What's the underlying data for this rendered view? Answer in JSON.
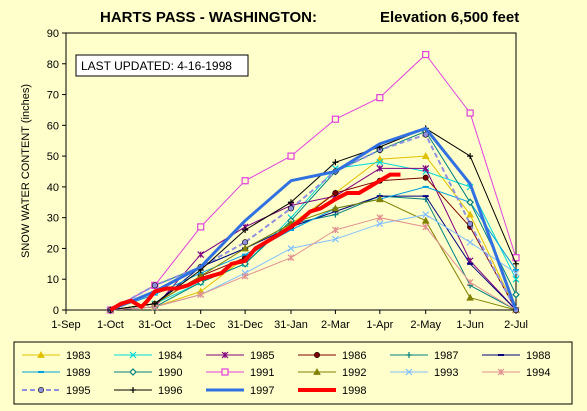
{
  "chart_data": {
    "type": "line",
    "title_left": "HARTS PASS - WASHINGTON:",
    "title_right": "Elevation 6,500 feet",
    "annotation": "LAST UPDATED: 4-16-1998",
    "ylabel": "SNOW WATER CONTENT (inches)",
    "ylim": [
      0,
      90
    ],
    "yticks": [
      0,
      10,
      20,
      30,
      40,
      50,
      60,
      70,
      80,
      90
    ],
    "xlim": [
      0,
      304
    ],
    "xticks": [
      {
        "label": "1-Sep",
        "day": 0
      },
      {
        "label": "1-Oct",
        "day": 30
      },
      {
        "label": "31-Oct",
        "day": 60
      },
      {
        "label": "1-Dec",
        "day": 91
      },
      {
        "label": "31-Dec",
        "day": 121
      },
      {
        "label": "31-Jan",
        "day": 152
      },
      {
        "label": "2-Mar",
        "day": 182
      },
      {
        "label": "1-Apr",
        "day": 212
      },
      {
        "label": "2-May",
        "day": 243
      },
      {
        "label": "1-Jun",
        "day": 273
      },
      {
        "label": "2-Jul",
        "day": 304
      }
    ],
    "grid": false,
    "legend_position": "bottom",
    "series": [
      {
        "name": "1983",
        "color": "#e0c000",
        "marker": "triangle",
        "width": 1,
        "points": [
          [
            30,
            0
          ],
          [
            60,
            1
          ],
          [
            91,
            6
          ],
          [
            121,
            17
          ],
          [
            152,
            28
          ],
          [
            182,
            38
          ],
          [
            212,
            49
          ],
          [
            243,
            50
          ],
          [
            273,
            31
          ],
          [
            304,
            0
          ]
        ]
      },
      {
        "name": "1984",
        "color": "#00d8d8",
        "marker": "x",
        "width": 1,
        "points": [
          [
            30,
            0
          ],
          [
            60,
            2
          ],
          [
            91,
            9
          ],
          [
            121,
            15
          ],
          [
            152,
            30
          ],
          [
            182,
            46
          ],
          [
            212,
            48
          ],
          [
            243,
            45
          ],
          [
            273,
            40
          ],
          [
            304,
            10
          ]
        ]
      },
      {
        "name": "1985",
        "color": "#800080",
        "marker": "star",
        "width": 1,
        "points": [
          [
            30,
            0
          ],
          [
            60,
            1
          ],
          [
            91,
            18
          ],
          [
            121,
            27
          ],
          [
            152,
            34
          ],
          [
            182,
            37
          ],
          [
            212,
            46
          ],
          [
            243,
            46
          ],
          [
            273,
            16
          ],
          [
            304,
            0
          ]
        ]
      },
      {
        "name": "1986",
        "color": "#800000",
        "marker": "circle",
        "width": 1,
        "points": [
          [
            30,
            0
          ],
          [
            60,
            2
          ],
          [
            91,
            11
          ],
          [
            121,
            17
          ],
          [
            152,
            27
          ],
          [
            182,
            38
          ],
          [
            212,
            42
          ],
          [
            243,
            43
          ],
          [
            273,
            27
          ],
          [
            304,
            0
          ]
        ]
      },
      {
        "name": "1987",
        "color": "#008080",
        "marker": "plus",
        "width": 1,
        "points": [
          [
            30,
            0
          ],
          [
            60,
            8
          ],
          [
            91,
            14
          ],
          [
            121,
            20
          ],
          [
            152,
            28
          ],
          [
            182,
            31
          ],
          [
            212,
            37
          ],
          [
            243,
            36
          ],
          [
            273,
            8
          ],
          [
            304,
            0
          ]
        ]
      },
      {
        "name": "1988",
        "color": "#000080",
        "marker": "dash",
        "width": 1,
        "points": [
          [
            30,
            0
          ],
          [
            60,
            2
          ],
          [
            91,
            14
          ],
          [
            121,
            20
          ],
          [
            152,
            27
          ],
          [
            182,
            32
          ],
          [
            212,
            37
          ],
          [
            243,
            37
          ],
          [
            273,
            15
          ],
          [
            304,
            0
          ]
        ]
      },
      {
        "name": "1989",
        "color": "#00a0e0",
        "marker": "dash",
        "width": 1,
        "points": [
          [
            30,
            0
          ],
          [
            60,
            5
          ],
          [
            91,
            12
          ],
          [
            121,
            18
          ],
          [
            152,
            26
          ],
          [
            182,
            33
          ],
          [
            212,
            36
          ],
          [
            243,
            40
          ],
          [
            273,
            35
          ],
          [
            304,
            13
          ]
        ]
      },
      {
        "name": "1990",
        "color": "#008080",
        "marker": "diamond",
        "width": 1,
        "points": [
          [
            30,
            0
          ],
          [
            60,
            1
          ],
          [
            91,
            9
          ],
          [
            121,
            15
          ],
          [
            152,
            29
          ],
          [
            182,
            45
          ],
          [
            212,
            52
          ],
          [
            243,
            58
          ],
          [
            273,
            35
          ],
          [
            304,
            5
          ]
        ]
      },
      {
        "name": "1991",
        "color": "#e040e0",
        "marker": "square",
        "width": 1,
        "points": [
          [
            30,
            0
          ],
          [
            60,
            8
          ],
          [
            91,
            27
          ],
          [
            121,
            42
          ],
          [
            152,
            50
          ],
          [
            182,
            62
          ],
          [
            212,
            69
          ],
          [
            243,
            83
          ],
          [
            273,
            64
          ],
          [
            304,
            17
          ]
        ]
      },
      {
        "name": "1992",
        "color": "#808000",
        "marker": "triangle",
        "width": 1,
        "points": [
          [
            30,
            0
          ],
          [
            60,
            2
          ],
          [
            91,
            11
          ],
          [
            121,
            20
          ],
          [
            152,
            28
          ],
          [
            182,
            33
          ],
          [
            212,
            36
          ],
          [
            243,
            29
          ],
          [
            273,
            4
          ],
          [
            304,
            0
          ]
        ]
      },
      {
        "name": "1993",
        "color": "#80c0ff",
        "marker": "x",
        "width": 1,
        "points": [
          [
            30,
            0
          ],
          [
            60,
            1
          ],
          [
            91,
            5
          ],
          [
            121,
            12
          ],
          [
            152,
            20
          ],
          [
            182,
            23
          ],
          [
            212,
            28
          ],
          [
            243,
            31
          ],
          [
            273,
            22
          ],
          [
            304,
            12
          ]
        ]
      },
      {
        "name": "1994",
        "color": "#e09090",
        "marker": "star",
        "width": 1,
        "points": [
          [
            30,
            0
          ],
          [
            60,
            1
          ],
          [
            91,
            5
          ],
          [
            121,
            11
          ],
          [
            152,
            17
          ],
          [
            182,
            26
          ],
          [
            212,
            30
          ],
          [
            243,
            27
          ],
          [
            273,
            9
          ],
          [
            304,
            0
          ]
        ]
      },
      {
        "name": "1995",
        "color": "#9090e0",
        "marker": "circle",
        "width": 2,
        "dashed": true,
        "points": [
          [
            30,
            0
          ],
          [
            60,
            8
          ],
          [
            91,
            14
          ],
          [
            121,
            22
          ],
          [
            152,
            33
          ],
          [
            182,
            45
          ],
          [
            212,
            52
          ],
          [
            243,
            57
          ],
          [
            273,
            28
          ],
          [
            304,
            0
          ]
        ]
      },
      {
        "name": "1996",
        "color": "#000000",
        "marker": "plus",
        "width": 1,
        "points": [
          [
            30,
            0
          ],
          [
            60,
            2
          ],
          [
            91,
            13
          ],
          [
            121,
            26
          ],
          [
            152,
            35
          ],
          [
            182,
            48
          ],
          [
            212,
            53
          ],
          [
            243,
            59
          ],
          [
            273,
            50
          ],
          [
            304,
            15
          ]
        ]
      },
      {
        "name": "1997",
        "color": "#3070e0",
        "marker": "none",
        "width": 3,
        "points": [
          [
            30,
            0
          ],
          [
            60,
            6
          ],
          [
            91,
            14
          ],
          [
            121,
            29
          ],
          [
            152,
            42
          ],
          [
            182,
            45
          ],
          [
            212,
            54
          ],
          [
            243,
            59
          ],
          [
            273,
            41
          ],
          [
            304,
            0
          ]
        ]
      },
      {
        "name": "1998",
        "color": "#ff0000",
        "marker": "none",
        "width": 4,
        "points": [
          [
            30,
            0
          ],
          [
            37,
            2
          ],
          [
            44,
            3
          ],
          [
            51,
            1
          ],
          [
            55,
            3
          ],
          [
            60,
            6
          ],
          [
            68,
            7
          ],
          [
            75,
            7
          ],
          [
            82,
            8
          ],
          [
            91,
            10
          ],
          [
            98,
            11
          ],
          [
            105,
            12
          ],
          [
            112,
            15
          ],
          [
            121,
            16
          ],
          [
            128,
            20
          ],
          [
            135,
            22
          ],
          [
            142,
            24
          ],
          [
            152,
            27
          ],
          [
            158,
            29
          ],
          [
            165,
            32
          ],
          [
            172,
            33
          ],
          [
            182,
            36
          ],
          [
            190,
            38
          ],
          [
            198,
            38
          ],
          [
            205,
            40
          ],
          [
            212,
            42
          ],
          [
            219,
            44
          ],
          [
            226,
            44
          ]
        ]
      }
    ]
  }
}
